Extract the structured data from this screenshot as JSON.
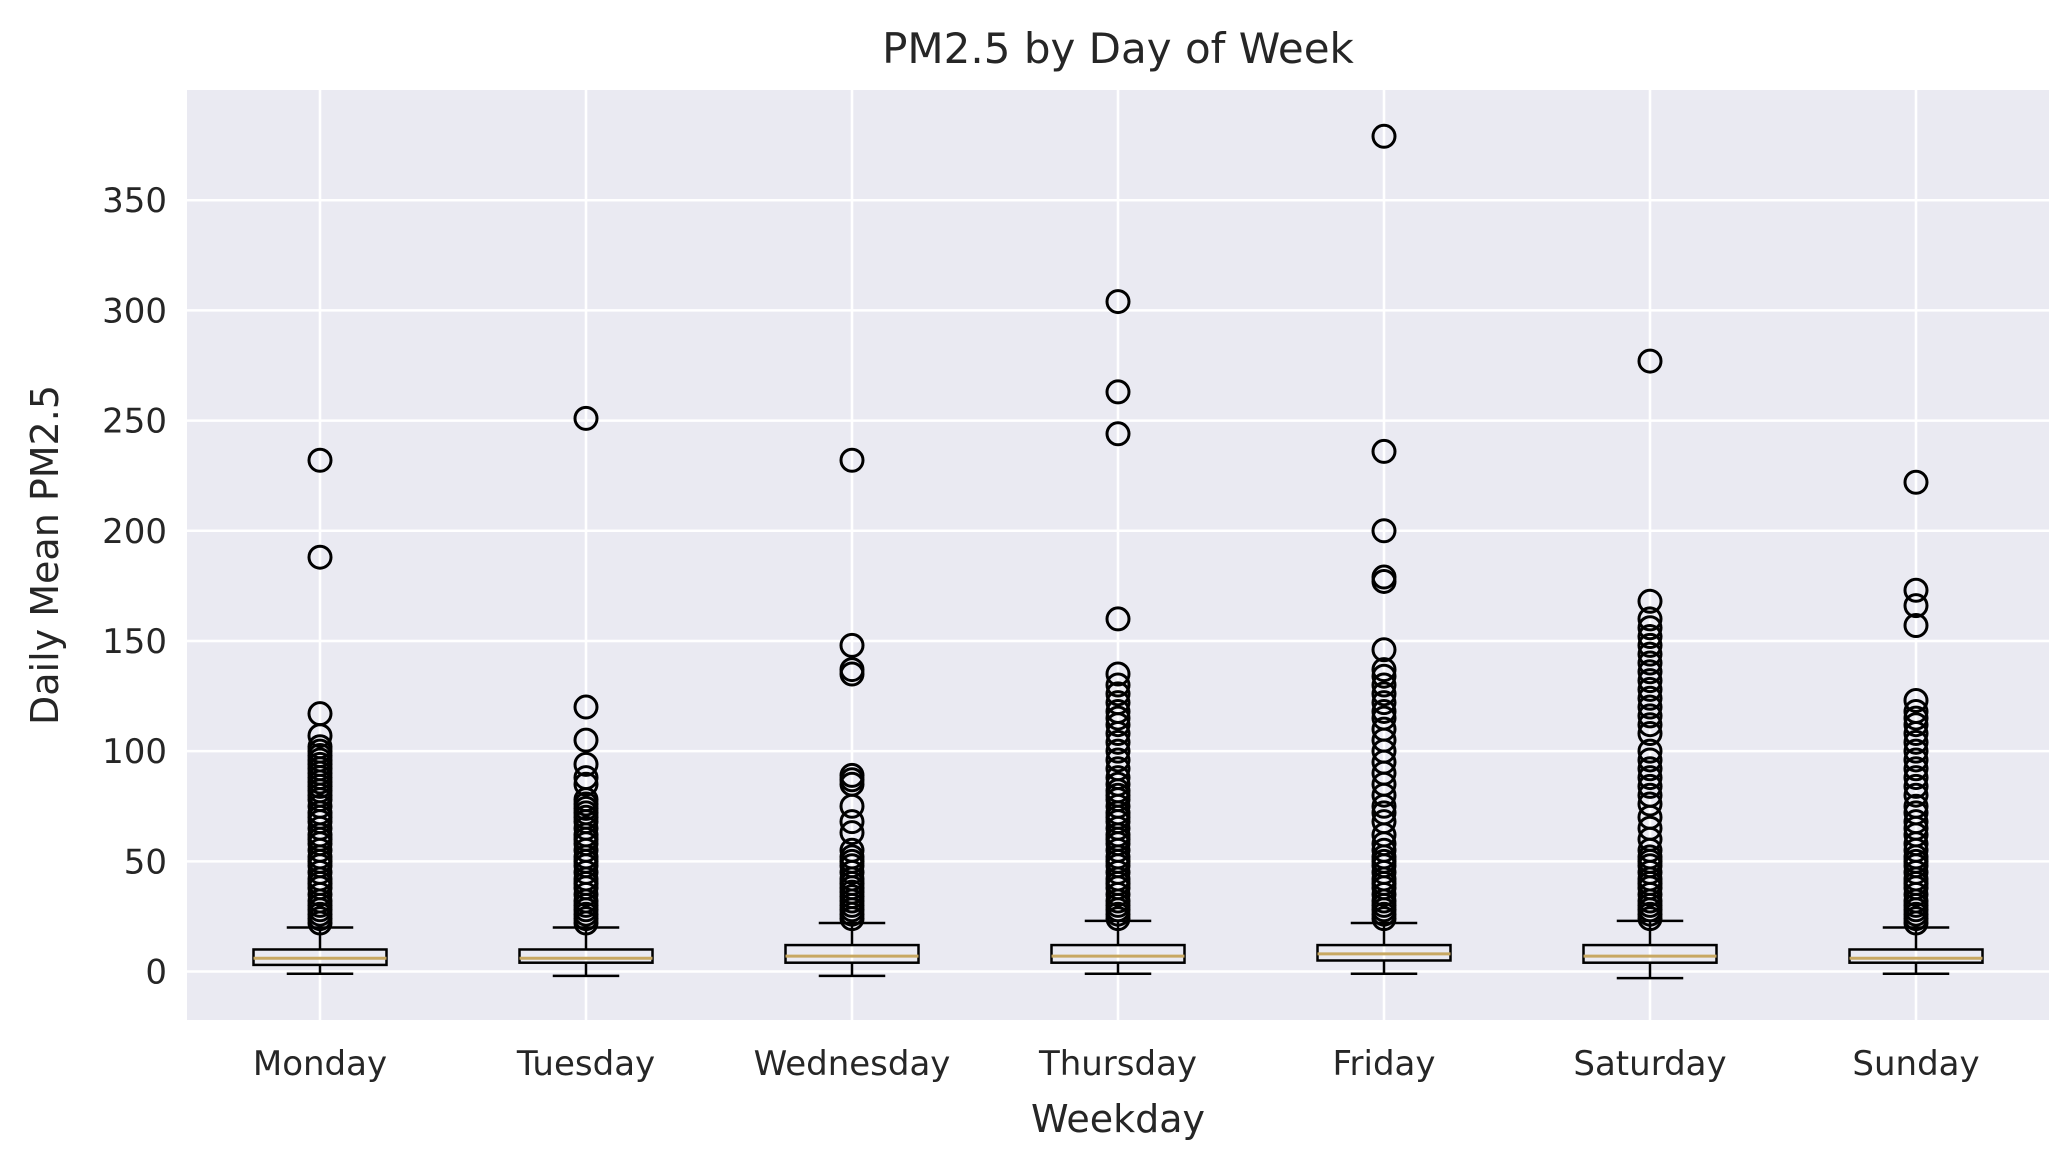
{
  "chart_data": {
    "type": "box",
    "title": "PM2.5 by Day of Week",
    "xlabel": "Weekday",
    "ylabel": "Daily Mean PM2.5",
    "ylim": [
      -22,
      400
    ],
    "yticks": [
      0,
      50,
      100,
      150,
      200,
      250,
      300,
      350
    ],
    "grid": true,
    "categories": [
      "Monday",
      "Tuesday",
      "Wednesday",
      "Thursday",
      "Friday",
      "Saturday",
      "Sunday"
    ],
    "boxes": [
      {
        "whisker_low": -1,
        "q1": 3,
        "median": 6,
        "q3": 10,
        "whisker_high": 20,
        "outliers": [
          232,
          188,
          117,
          107,
          102,
          100,
          98,
          96,
          94,
          92,
          90,
          88,
          86,
          84,
          82,
          80,
          78,
          75,
          72,
          70,
          68,
          65,
          62,
          60,
          58,
          55,
          52,
          50,
          48,
          45,
          42,
          40,
          38,
          35,
          32,
          30,
          28,
          26,
          24,
          22
        ]
      },
      {
        "whisker_low": -2,
        "q1": 4,
        "median": 6,
        "q3": 10,
        "whisker_high": 20,
        "outliers": [
          251,
          120,
          105,
          94,
          88,
          85,
          78,
          76,
          74,
          72,
          70,
          68,
          65,
          62,
          60,
          58,
          55,
          52,
          50,
          48,
          45,
          42,
          40,
          38,
          35,
          32,
          30,
          28,
          26,
          24,
          22
        ]
      },
      {
        "whisker_low": -2,
        "q1": 4,
        "median": 7,
        "q3": 12,
        "whisker_high": 22,
        "outliers": [
          232,
          148,
          137,
          135,
          89,
          87,
          85,
          75,
          68,
          63,
          55,
          52,
          50,
          48,
          45,
          42,
          40,
          38,
          36,
          34,
          32,
          30,
          28,
          26,
          24
        ]
      },
      {
        "whisker_low": -1,
        "q1": 4,
        "median": 7,
        "q3": 12,
        "whisker_high": 23,
        "outliers": [
          304,
          263,
          244,
          160,
          135,
          130,
          126,
          122,
          118,
          115,
          112,
          108,
          104,
          100,
          96,
          92,
          88,
          85,
          82,
          80,
          78,
          75,
          72,
          70,
          68,
          65,
          62,
          60,
          58,
          55,
          52,
          50,
          48,
          45,
          42,
          40,
          38,
          35,
          32,
          30,
          28,
          26,
          24
        ]
      },
      {
        "whisker_low": -1,
        "q1": 5,
        "median": 8,
        "q3": 12,
        "whisker_high": 22,
        "outliers": [
          379,
          236,
          200,
          179,
          177,
          146,
          137,
          134,
          130,
          126,
          122,
          118,
          115,
          110,
          105,
          100,
          95,
          90,
          85,
          80,
          75,
          72,
          68,
          62,
          58,
          55,
          52,
          50,
          48,
          45,
          42,
          40,
          38,
          35,
          32,
          30,
          28,
          26,
          24
        ]
      },
      {
        "whisker_low": -3,
        "q1": 4,
        "median": 7,
        "q3": 12,
        "whisker_high": 23,
        "outliers": [
          277,
          168,
          160,
          156,
          152,
          148,
          144,
          140,
          136,
          132,
          128,
          124,
          120,
          116,
          112,
          108,
          100,
          96,
          92,
          88,
          84,
          80,
          76,
          70,
          65,
          60,
          55,
          52,
          50,
          48,
          45,
          42,
          40,
          38,
          35,
          32,
          30,
          28,
          26,
          24
        ]
      },
      {
        "whisker_low": -1,
        "q1": 4,
        "median": 6,
        "q3": 10,
        "whisker_high": 20,
        "outliers": [
          222,
          173,
          166,
          157,
          123,
          118,
          115,
          112,
          108,
          104,
          100,
          96,
          92,
          88,
          84,
          80,
          75,
          72,
          68,
          65,
          62,
          58,
          55,
          52,
          50,
          48,
          45,
          42,
          40,
          38,
          35,
          32,
          30,
          28,
          26,
          24,
          22
        ]
      }
    ],
    "colors": {
      "plot_background": "#eaeaf2",
      "grid": "#ffffff",
      "box_edge": "#000000",
      "median": "#c8a862",
      "text": "#262626"
    }
  }
}
